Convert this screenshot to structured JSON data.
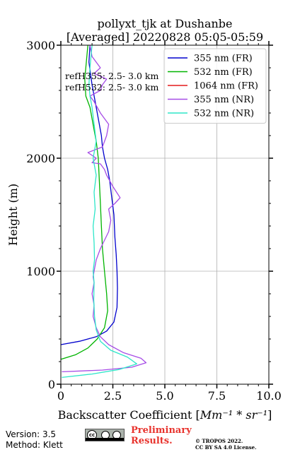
{
  "chart_data": {
    "type": "line",
    "title": "pollyxt_tjk at Dushanbe",
    "subtitle": "[Averaged] 20220828 05:05-05:59",
    "xlabel_prefix": "Backscatter Coefficient [",
    "xlabel_math": "Mm⁻¹ * sr⁻¹",
    "xlabel_suffix": "]",
    "ylabel": "Height (m)",
    "xlim": [
      0,
      10
    ],
    "ylim": [
      0,
      3000
    ],
    "xticks": [
      0,
      2.5,
      5,
      7.5,
      10
    ],
    "xtick_labels": [
      "0",
      "2.5",
      "5.0",
      "7.5",
      "10.0"
    ],
    "yticks": [
      0,
      1000,
      2000,
      3000
    ],
    "ytick_labels": [
      "0",
      "1000",
      "2000",
      "3000"
    ],
    "grid": true,
    "legend_position": "top-right",
    "annotations": [
      "refH355:  2.5- 3.0 km",
      "refH532:  2.5- 3.0 km"
    ],
    "series": [
      {
        "name": "355 nm (FR)",
        "color": "#0000cd",
        "x": [
          0.0,
          0.9,
          1.7,
          2.2,
          2.55,
          2.7,
          2.72,
          2.7,
          2.66,
          2.6,
          2.55,
          2.45,
          2.35,
          2.25,
          2.1,
          2.0,
          1.95,
          1.85,
          1.7,
          1.5,
          1.35,
          1.4
        ],
        "y": [
          350,
          380,
          420,
          470,
          550,
          680,
          850,
          1000,
          1150,
          1300,
          1500,
          1650,
          1800,
          1900,
          2000,
          2100,
          2200,
          2300,
          2450,
          2650,
          2850,
          3000
        ]
      },
      {
        "name": "532 nm (FR)",
        "color": "#00b400",
        "x": [
          0.0,
          0.7,
          1.3,
          1.75,
          2.1,
          2.25,
          2.2,
          2.1,
          2.0,
          1.95,
          1.9,
          1.85,
          1.8,
          1.7,
          1.6,
          1.5,
          1.4,
          1.2,
          1.15,
          1.3
        ],
        "y": [
          220,
          260,
          320,
          400,
          500,
          650,
          800,
          1000,
          1200,
          1400,
          1600,
          1800,
          2000,
          2150,
          2250,
          2350,
          2450,
          2550,
          2700,
          3000
        ]
      },
      {
        "name": "1064 nm (FR)",
        "color": "#e41a1c",
        "x": [],
        "y": []
      },
      {
        "name": "355 nm (NR)",
        "color": "#a64ce6",
        "x": [
          0.05,
          2.0,
          3.4,
          4.1,
          3.85,
          3.0,
          2.3,
          1.9,
          1.7,
          1.55,
          1.6,
          1.5,
          1.6,
          1.55,
          1.6,
          1.7,
          1.9,
          2.3,
          2.4,
          2.3,
          2.6,
          2.85,
          2.5,
          2.2,
          2.1,
          1.9,
          1.5,
          1.7,
          1.3,
          2.0,
          2.2,
          2.3,
          1.9,
          1.6,
          1.4,
          1.9,
          2.0,
          2.2,
          1.6,
          1.9,
          1.5,
          1.4
        ],
        "y": [
          110,
          125,
          150,
          190,
          230,
          280,
          350,
          420,
          500,
          600,
          700,
          800,
          900,
          950,
          1000,
          1100,
          1200,
          1350,
          1450,
          1550,
          1600,
          1650,
          1750,
          1850,
          1900,
          1950,
          1960,
          2000,
          2050,
          2100,
          2200,
          2300,
          2400,
          2500,
          2550,
          2600,
          2650,
          2700,
          2750,
          2800,
          2900,
          3000
        ]
      },
      {
        "name": "532 nm (NR)",
        "color": "#2ee6c9",
        "x": [
          0.05,
          1.5,
          2.8,
          3.65,
          3.2,
          2.4,
          1.9,
          1.7,
          1.62,
          1.58,
          1.6,
          1.55,
          1.62,
          1.6,
          1.55,
          1.65,
          1.6,
          1.7,
          1.55,
          1.7,
          1.6,
          1.5,
          1.4,
          1.35,
          1.4,
          1.45,
          1.5
        ],
        "y": [
          60,
          90,
          130,
          180,
          240,
          300,
          380,
          480,
          600,
          750,
          900,
          1000,
          1100,
          1250,
          1400,
          1550,
          1700,
          1850,
          2000,
          2150,
          2300,
          2450,
          2550,
          2650,
          2800,
          2900,
          3000
        ]
      }
    ]
  },
  "footer": {
    "version_line": "Version: 3.5",
    "method_line": "Method: Klett",
    "preliminary_line1": "Preliminary",
    "preliminary_line2": "Results.",
    "copyright_line1": "© TROPOS 2022.",
    "copyright_line2": "CC BY SA 4.0 License.",
    "cc_badge_text": "cc"
  }
}
